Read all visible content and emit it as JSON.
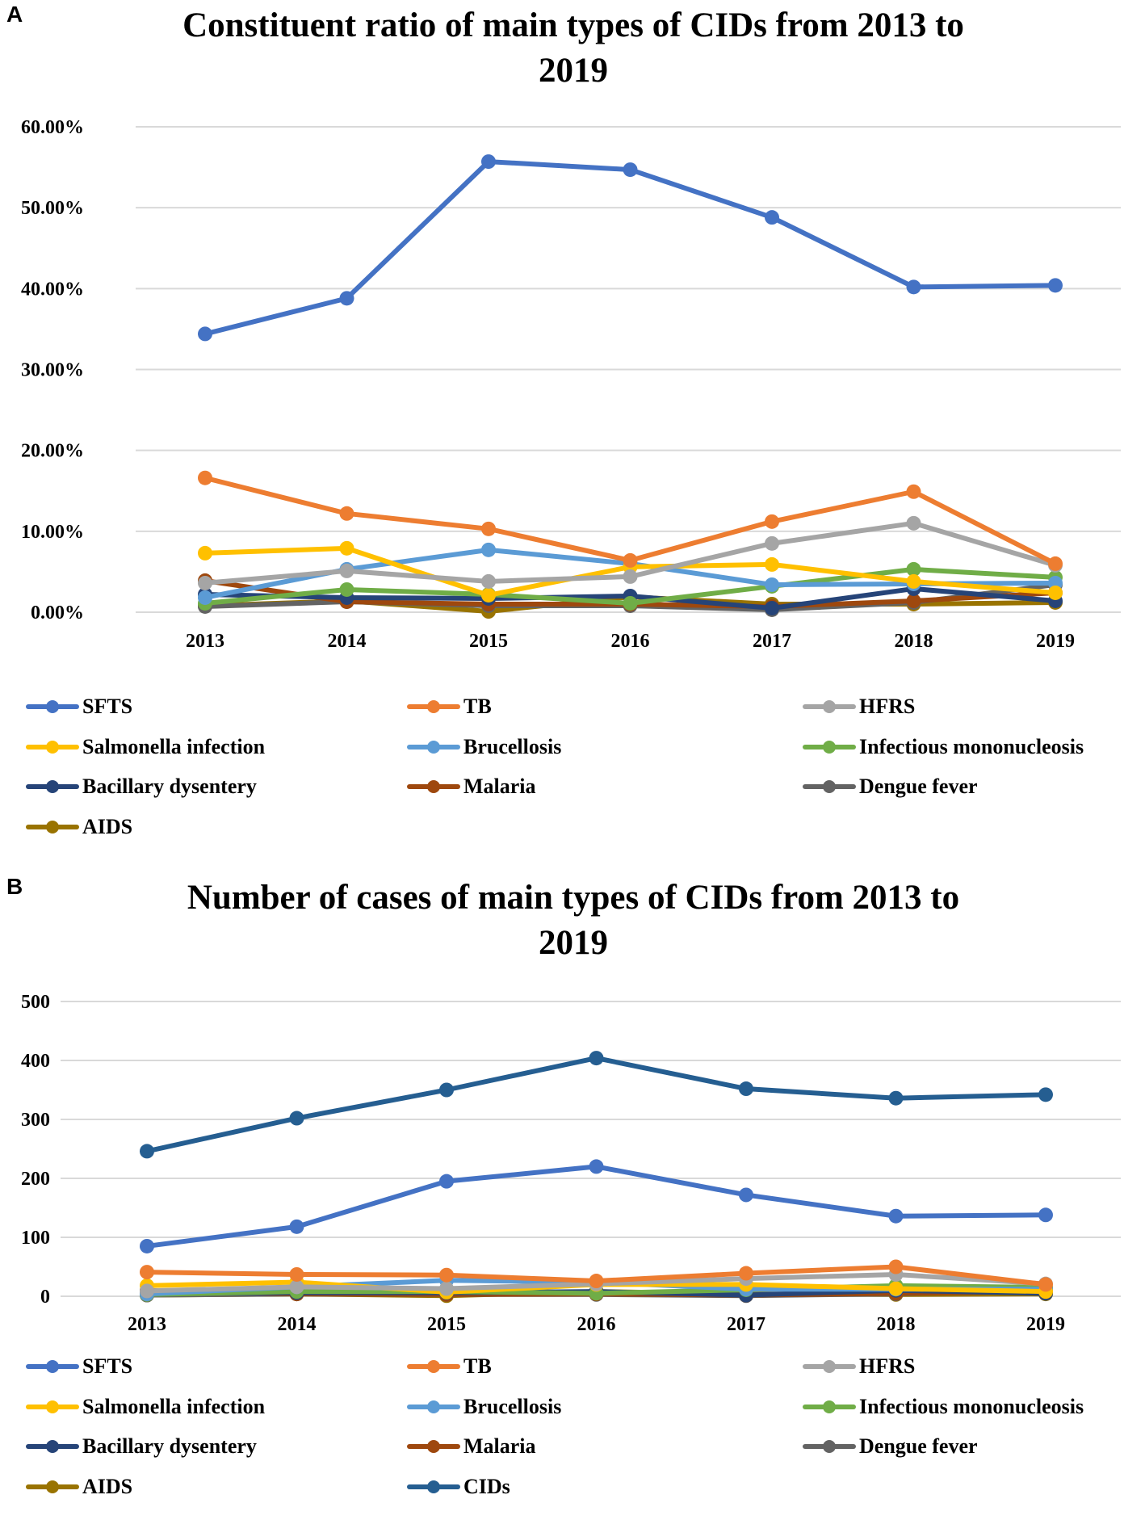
{
  "chart_data": [
    {
      "panel": "A",
      "type": "line",
      "title": "Constituent ratio of main types of CIDs from 2013 to 2019",
      "title_lines": [
        "Constituent ratio of main types of CIDs from 2013 to",
        "2019"
      ],
      "xlabel": "",
      "ylabel": "",
      "categories": [
        "2013",
        "2014",
        "2015",
        "2016",
        "2017",
        "2018",
        "2019"
      ],
      "ylim": [
        0,
        60
      ],
      "yticks": [
        0,
        10,
        20,
        30,
        40,
        50,
        60
      ],
      "ytick_labels": [
        "0.00%",
        "10.00%",
        "20.00%",
        "30.00%",
        "40.00%",
        "50.00%",
        "60.00%"
      ],
      "grid": true,
      "legend_position": "bottom",
      "series": [
        {
          "name": "SFTS",
          "color": "#4472C4",
          "values": [
            34.4,
            38.8,
            55.7,
            54.7,
            48.8,
            40.2,
            40.4
          ]
        },
        {
          "name": "TB",
          "color": "#ED7D31",
          "values": [
            16.6,
            12.2,
            10.3,
            6.4,
            11.2,
            14.9,
            6.0
          ]
        },
        {
          "name": "HFRS",
          "color": "#A5A5A5",
          "values": [
            3.6,
            5.1,
            3.8,
            4.4,
            8.5,
            11.0,
            5.8
          ]
        },
        {
          "name": "Salmonella infection",
          "color": "#FFC000",
          "values": [
            7.3,
            7.9,
            2.1,
            5.6,
            5.9,
            3.8,
            2.4
          ]
        },
        {
          "name": "Brucellosis",
          "color": "#5B9BD5",
          "values": [
            1.8,
            5.3,
            7.7,
            6.0,
            3.4,
            3.5,
            3.6
          ]
        },
        {
          "name": "Infectious mononucleosis",
          "color": "#70AD47",
          "values": [
            1.1,
            2.8,
            2.2,
            1.1,
            3.2,
            5.3,
            4.3
          ]
        },
        {
          "name": "Bacillary dysentery",
          "color": "#264478",
          "values": [
            2.2,
            1.8,
            1.7,
            2.0,
            0.5,
            2.9,
            1.4
          ]
        },
        {
          "name": "Malaria",
          "color": "#9E480E",
          "values": [
            3.9,
            1.3,
            1.0,
            1.0,
            0.7,
            1.4,
            2.4
          ]
        },
        {
          "name": "Dengue fever",
          "color": "#636363",
          "values": [
            0.7,
            1.3,
            0.8,
            0.8,
            0.3,
            1.2,
            3.4
          ]
        },
        {
          "name": "AIDS",
          "color": "#997300",
          "values": [
            0.8,
            1.4,
            0.1,
            1.9,
            1.0,
            1.0,
            1.2
          ]
        }
      ]
    },
    {
      "panel": "B",
      "type": "line",
      "title": "Number of cases of main types of CIDs from 2013 to 2019",
      "title_lines": [
        "Number of cases  of main types of CIDs from 2013 to",
        "2019"
      ],
      "xlabel": "",
      "ylabel": "",
      "categories": [
        "2013",
        "2014",
        "2015",
        "2016",
        "2017",
        "2018",
        "2019"
      ],
      "ylim": [
        0,
        500
      ],
      "yticks": [
        0,
        100,
        200,
        300,
        400,
        500
      ],
      "ytick_labels": [
        "0",
        "100",
        "200",
        "300",
        "400",
        "500"
      ],
      "grid": true,
      "legend_position": "bottom",
      "series": [
        {
          "name": "SFTS",
          "color": "#4472C4",
          "values": [
            85,
            118,
            195,
            220,
            172,
            136,
            138
          ]
        },
        {
          "name": "TB",
          "color": "#ED7D31",
          "values": [
            41,
            37,
            36,
            26,
            39,
            50,
            20
          ]
        },
        {
          "name": "HFRS",
          "color": "#A5A5A5",
          "values": [
            9,
            16,
            13,
            21,
            30,
            37,
            21
          ]
        },
        {
          "name": "Salmonella infection",
          "color": "#FFC000",
          "values": [
            18,
            24,
            7,
            20,
            20,
            13,
            8
          ]
        },
        {
          "name": "Brucellosis",
          "color": "#5B9BD5",
          "values": [
            4,
            16,
            27,
            24,
            12,
            12,
            12
          ]
        },
        {
          "name": "Infectious mononucleosis",
          "color": "#70AD47",
          "values": [
            3,
            8,
            8,
            5,
            11,
            18,
            15
          ]
        },
        {
          "name": "Bacillary dysentery",
          "color": "#264478",
          "values": [
            5,
            6,
            6,
            8,
            2,
            10,
            5
          ]
        },
        {
          "name": "Malaria",
          "color": "#9E480E",
          "values": [
            10,
            4,
            3,
            4,
            2,
            5,
            8
          ]
        },
        {
          "name": "Dengue fever",
          "color": "#636363",
          "values": [
            2,
            4,
            3,
            3,
            1,
            4,
            12
          ]
        },
        {
          "name": "AIDS",
          "color": "#997300",
          "values": [
            2,
            4,
            1,
            8,
            4,
            3,
            4
          ]
        },
        {
          "name": "CIDs",
          "color": "#255E91",
          "values": [
            246,
            302,
            350,
            404,
            352,
            336,
            342
          ]
        }
      ]
    }
  ]
}
